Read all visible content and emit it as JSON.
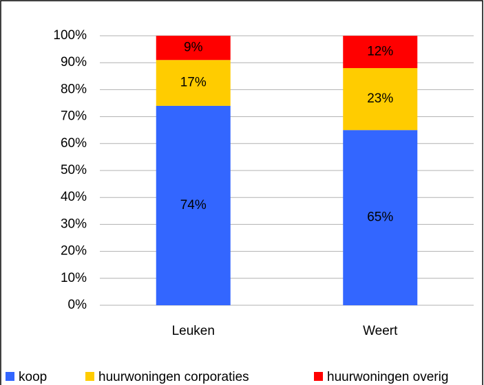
{
  "chart_data": {
    "type": "stacked_bar",
    "categories": [
      "Leuken",
      "Weert"
    ],
    "series": [
      {
        "name": "koop",
        "color": "#3366ff",
        "values": [
          74,
          65
        ],
        "value_labels": [
          "74%",
          "65%"
        ]
      },
      {
        "name": "huurwoningen corporaties",
        "color": "#ffcc00",
        "values": [
          17,
          23
        ],
        "value_labels": [
          "17%",
          "23%"
        ]
      },
      {
        "name": "huurwoningen overig",
        "color": "#ff0000",
        "values": [
          9,
          12
        ],
        "value_labels": [
          "9%",
          "12%"
        ]
      }
    ],
    "ylim": [
      0,
      100
    ],
    "yticks": [
      {
        "value": 0,
        "label": "0%"
      },
      {
        "value": 10,
        "label": "10%"
      },
      {
        "value": 20,
        "label": "20%"
      },
      {
        "value": 30,
        "label": "30%"
      },
      {
        "value": 40,
        "label": "40%"
      },
      {
        "value": 50,
        "label": "50%"
      },
      {
        "value": 60,
        "label": "60%"
      },
      {
        "value": 70,
        "label": "70%"
      },
      {
        "value": 80,
        "label": "80%"
      },
      {
        "value": 90,
        "label": "90%"
      },
      {
        "value": 100,
        "label": "100%"
      }
    ],
    "grid": true,
    "legend": "bottom"
  }
}
